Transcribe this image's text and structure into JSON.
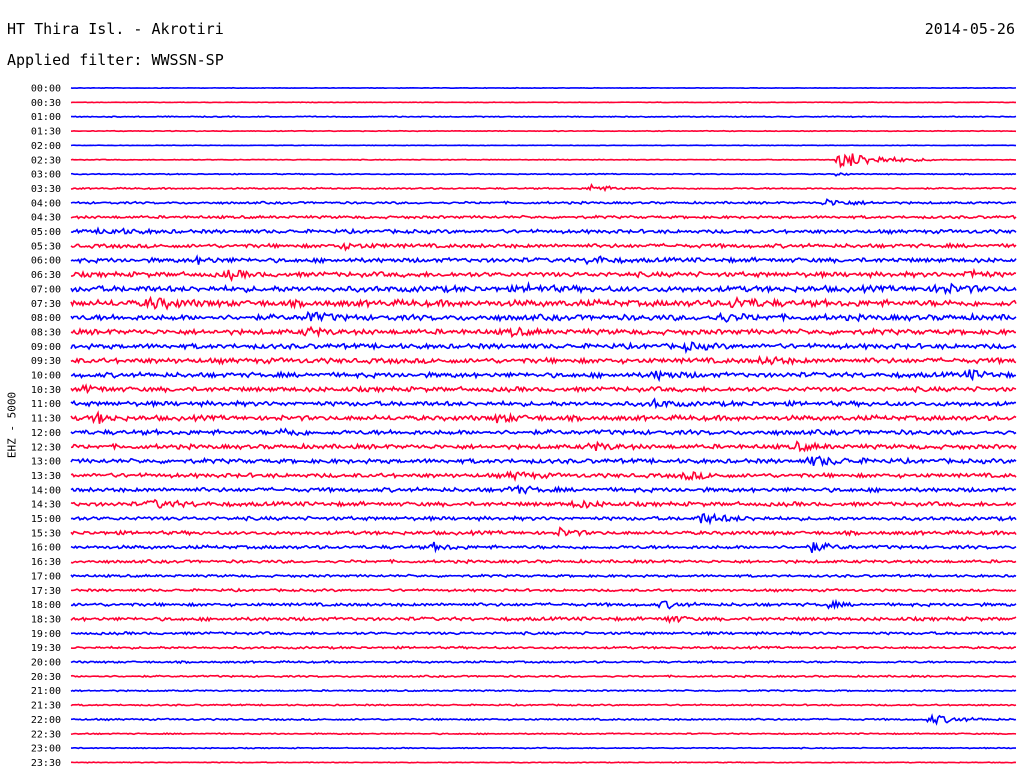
{
  "header": {
    "station": "HT Thira Isl. - Akrotiri",
    "date": "2014-05-26",
    "filter": "Applied filter: WWSSN-SP"
  },
  "chart_data": {
    "type": "seismogram",
    "channel_label": "EHZ - 5000",
    "colors": {
      "even_hour_trace": "#0000ff",
      "half_hour_trace": "#ff0033"
    },
    "rows": [
      "00:00",
      "00:30",
      "01:00",
      "01:30",
      "02:00",
      "02:30",
      "03:00",
      "03:30",
      "04:00",
      "04:30",
      "05:00",
      "05:30",
      "06:00",
      "06:30",
      "07:00",
      "07:30",
      "08:00",
      "08:30",
      "09:00",
      "09:30",
      "10:00",
      "10:30",
      "11:00",
      "11:30",
      "12:00",
      "12:30",
      "13:00",
      "13:30",
      "14:00",
      "14:30",
      "15:00",
      "15:30",
      "16:00",
      "16:30",
      "17:00",
      "17:30",
      "18:00",
      "18:30",
      "19:00",
      "19:30",
      "20:00",
      "20:30",
      "21:00",
      "21:30",
      "22:00",
      "22:30",
      "23:00",
      "23:30"
    ],
    "noise_level": [
      0.2,
      0.2,
      0.4,
      0.3,
      0.2,
      0.3,
      0.4,
      0.6,
      0.9,
      1.1,
      1.5,
      1.6,
      1.8,
      2.0,
      2.4,
      2.6,
      2.3,
      2.1,
      2.0,
      2.1,
      2.0,
      1.9,
      1.9,
      2.0,
      1.9,
      1.8,
      1.8,
      1.7,
      1.7,
      1.7,
      1.5,
      1.5,
      1.4,
      1.2,
      1.0,
      1.0,
      1.3,
      1.4,
      1.1,
      0.9,
      0.8,
      0.7,
      0.6,
      0.6,
      0.7,
      0.5,
      0.4,
      0.3
    ],
    "events": [
      {
        "row": 5,
        "minute": 24.4,
        "amp": 9,
        "len": 3.3
      },
      {
        "row": 6,
        "minute": 24.4,
        "amp": 3,
        "len": 0.4
      },
      {
        "row": 7,
        "minute": 16.5,
        "amp": 3.5,
        "len": 1.8
      },
      {
        "row": 8,
        "minute": 24.0,
        "amp": 3,
        "len": 2.2
      },
      {
        "row": 10,
        "minute": 1.0,
        "amp": 2.5,
        "len": 2.5
      },
      {
        "row": 11,
        "minute": 8.5,
        "amp": 2.5,
        "len": 2.2
      },
      {
        "row": 12,
        "minute": 16.5,
        "amp": 5,
        "len": 1.0
      },
      {
        "row": 12,
        "minute": 4.0,
        "amp": 2.5,
        "len": 1.5
      },
      {
        "row": 13,
        "minute": 5.0,
        "amp": 3.5,
        "len": 1.2
      },
      {
        "row": 13,
        "minute": 28.5,
        "amp": 5,
        "len": 1.0
      },
      {
        "row": 14,
        "minute": 27.5,
        "amp": 4.5,
        "len": 1.8
      },
      {
        "row": 14,
        "minute": 14.5,
        "amp": 3,
        "len": 1.5
      },
      {
        "row": 15,
        "minute": 2.5,
        "amp": 4.5,
        "len": 2.0
      },
      {
        "row": 15,
        "minute": 21.0,
        "amp": 4.5,
        "len": 1.8
      },
      {
        "row": 16,
        "minute": 7.5,
        "amp": 4.5,
        "len": 1.5
      },
      {
        "row": 16,
        "minute": 20.5,
        "amp": 3.5,
        "len": 2.0
      },
      {
        "row": 17,
        "minute": 7.5,
        "amp": 4,
        "len": 1.2
      },
      {
        "row": 17,
        "minute": 14.0,
        "amp": 3,
        "len": 1.2
      },
      {
        "row": 18,
        "minute": 19.5,
        "amp": 3,
        "len": 1.5
      },
      {
        "row": 19,
        "minute": 22.0,
        "amp": 3.5,
        "len": 1.5
      },
      {
        "row": 20,
        "minute": 18.5,
        "amp": 3.5,
        "len": 1.8
      },
      {
        "row": 20,
        "minute": 28.5,
        "amp": 4,
        "len": 1.2
      },
      {
        "row": 21,
        "minute": 0.5,
        "amp": 3,
        "len": 1.2
      },
      {
        "row": 22,
        "minute": 18.5,
        "amp": 3.5,
        "len": 1.2
      },
      {
        "row": 23,
        "minute": 0.8,
        "amp": 5,
        "len": 1.0
      },
      {
        "row": 23,
        "minute": 13.5,
        "amp": 3,
        "len": 2.0
      },
      {
        "row": 24,
        "minute": 6.8,
        "amp": 4,
        "len": 1.0
      },
      {
        "row": 25,
        "minute": 16.5,
        "amp": 4,
        "len": 1.5
      },
      {
        "row": 25,
        "minute": 23.0,
        "amp": 3.5,
        "len": 1.5
      },
      {
        "row": 26,
        "minute": 23.5,
        "amp": 4,
        "len": 2.5
      },
      {
        "row": 27,
        "minute": 14.0,
        "amp": 3.5,
        "len": 1.5
      },
      {
        "row": 27,
        "minute": 19.5,
        "amp": 3.5,
        "len": 1.5
      },
      {
        "row": 28,
        "minute": 14.0,
        "amp": 4,
        "len": 1.5
      },
      {
        "row": 29,
        "minute": 2.5,
        "amp": 3.5,
        "len": 2.5
      },
      {
        "row": 29,
        "minute": 16.0,
        "amp": 3.5,
        "len": 1.5
      },
      {
        "row": 30,
        "minute": 20.0,
        "amp": 4.5,
        "len": 2.2
      },
      {
        "row": 31,
        "minute": 15.5,
        "amp": 4,
        "len": 1.2
      },
      {
        "row": 32,
        "minute": 11.5,
        "amp": 3.5,
        "len": 1.2
      },
      {
        "row": 32,
        "minute": 23.5,
        "amp": 4.5,
        "len": 1.5
      },
      {
        "row": 36,
        "minute": 18.8,
        "amp": 3.5,
        "len": 1.2
      },
      {
        "row": 36,
        "minute": 24.0,
        "amp": 3,
        "len": 1.0
      },
      {
        "row": 37,
        "minute": 19.0,
        "amp": 3.5,
        "len": 1.0
      },
      {
        "row": 44,
        "minute": 27.3,
        "amp": 4.5,
        "len": 2.2
      }
    ]
  }
}
